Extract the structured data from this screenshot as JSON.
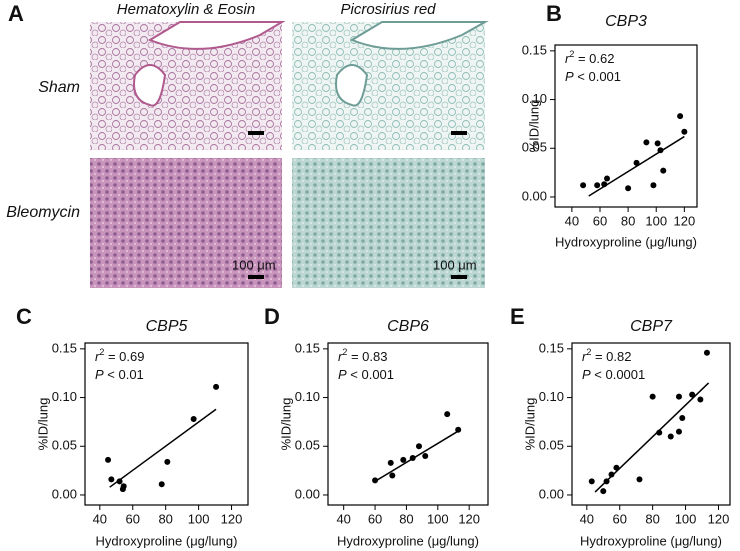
{
  "panel_a": {
    "label": "A",
    "columns": [
      "Hematoxylin & Eosin",
      "Picrosirius red"
    ],
    "rows": [
      "Sham",
      "Bleomycin"
    ],
    "scale_bar_label": "100 μm"
  },
  "chart_data": [
    {
      "type": "scatter",
      "panel_label": "B",
      "title": "CBP3",
      "xlabel": "Hydroxyproline (μg/lung)",
      "ylabel": "%ID/lung",
      "color": "#000000",
      "stat_symbol": "r",
      "stat_exponent": "2",
      "r2_text": " = 0.62",
      "p_symbol": "P",
      "p_text": " < 0.001",
      "x": [
        48,
        58,
        63,
        65,
        80,
        86,
        93,
        98,
        101,
        103,
        105,
        117,
        120
      ],
      "y": [
        0.012,
        0.012,
        0.013,
        0.019,
        0.009,
        0.035,
        0.056,
        0.012,
        0.055,
        0.048,
        0.027,
        0.083,
        0.067
      ],
      "fit": {
        "x": [
          52,
          120
        ],
        "y": [
          0.001,
          0.062
        ]
      },
      "xlim": [
        28,
        129
      ],
      "ylim": [
        -0.0103,
        0.156
      ],
      "xticks": [
        40,
        60,
        80,
        100,
        120
      ],
      "yticks": [
        {
          "value": 0,
          "label": "0.00"
        },
        {
          "value": 0.05,
          "label": "0.05"
        },
        {
          "value": 0.1,
          "label": "0.10"
        },
        {
          "value": 0.15,
          "label": "0.15"
        }
      ]
    },
    {
      "type": "scatter",
      "panel_label": "C",
      "title": "CBP5",
      "xlabel": "Hydroxyproline (μg/lung)",
      "ylabel": "%ID/lung",
      "color": "#000000",
      "stat_symbol": "r",
      "stat_exponent": "2",
      "r2_text": " = 0.69",
      "p_symbol": "P",
      "p_text": " < 0.01",
      "x": [
        45,
        47,
        52,
        54,
        54.5,
        77.6,
        81,
        97,
        110.6
      ],
      "y": [
        0.036,
        0.016,
        0.014,
        0.006,
        0.009,
        0.011,
        0.034,
        0.078,
        0.111
      ],
      "fit": {
        "x": [
          46,
          110.6
        ],
        "y": [
          0.008,
          0.088
        ]
      },
      "xlim": [
        31,
        130
      ],
      "ylim": [
        -0.0103,
        0.156
      ],
      "xticks": [
        40,
        60,
        80,
        100,
        120
      ],
      "yticks": [
        {
          "value": 0,
          "label": "0.00"
        },
        {
          "value": 0.05,
          "label": "0.05"
        },
        {
          "value": 0.1,
          "label": "0.10"
        },
        {
          "value": 0.15,
          "label": "0.15"
        }
      ]
    },
    {
      "type": "scatter",
      "panel_label": "D",
      "title": "CBP6",
      "xlabel": "Hydroxyproline (μg/lung)",
      "ylabel": "%ID/lung",
      "color": "#000000",
      "stat_symbol": "r",
      "stat_exponent": "2",
      "r2_text": " = 0.83",
      "p_symbol": "P",
      "p_text": " < 0.001",
      "x": [
        60,
        70,
        71,
        78,
        84,
        88,
        92,
        106,
        113
      ],
      "y": [
        0.015,
        0.033,
        0.02,
        0.036,
        0.038,
        0.05,
        0.04,
        0.083,
        0.067
      ],
      "fit": {
        "x": [
          60,
          114.5
        ],
        "y": [
          0.014,
          0.067
        ]
      },
      "xlim": [
        30,
        132
      ],
      "ylim": [
        -0.0103,
        0.156
      ],
      "xticks": [
        40,
        60,
        80,
        100,
        120
      ],
      "yticks": [
        {
          "value": 0,
          "label": "0.00"
        },
        {
          "value": 0.05,
          "label": "0.05"
        },
        {
          "value": 0.1,
          "label": "0.10"
        },
        {
          "value": 0.15,
          "label": "0.15"
        }
      ]
    },
    {
      "type": "scatter",
      "panel_label": "E",
      "title": "CBP7",
      "xlabel": "Hydroxyproline (μg/lung)",
      "ylabel": "%ID/lung",
      "color": "#000000",
      "stat_symbol": "r",
      "stat_exponent": "2",
      "r2_text": " = 0.82",
      "p_symbol": "P",
      "p_text": " < 0.0001",
      "x": [
        43,
        50,
        52,
        55,
        58,
        72,
        80,
        84,
        91,
        96,
        96,
        98,
        104,
        109,
        113
      ],
      "y": [
        0.014,
        0.004,
        0.014,
        0.021,
        0.028,
        0.016,
        0.101,
        0.064,
        0.06,
        0.101,
        0.065,
        0.079,
        0.103,
        0.098,
        0.146
      ],
      "fit": {
        "x": [
          45,
          114
        ],
        "y": [
          0.003,
          0.115
        ]
      },
      "xlim": [
        31,
        127
      ],
      "ylim": [
        -0.0103,
        0.156
      ],
      "xticks": [
        40,
        60,
        80,
        100,
        120
      ],
      "yticks": [
        {
          "value": 0,
          "label": "0.00"
        },
        {
          "value": 0.05,
          "label": "0.05"
        },
        {
          "value": 0.1,
          "label": "0.10"
        },
        {
          "value": 0.15,
          "label": "0.15"
        }
      ]
    }
  ]
}
